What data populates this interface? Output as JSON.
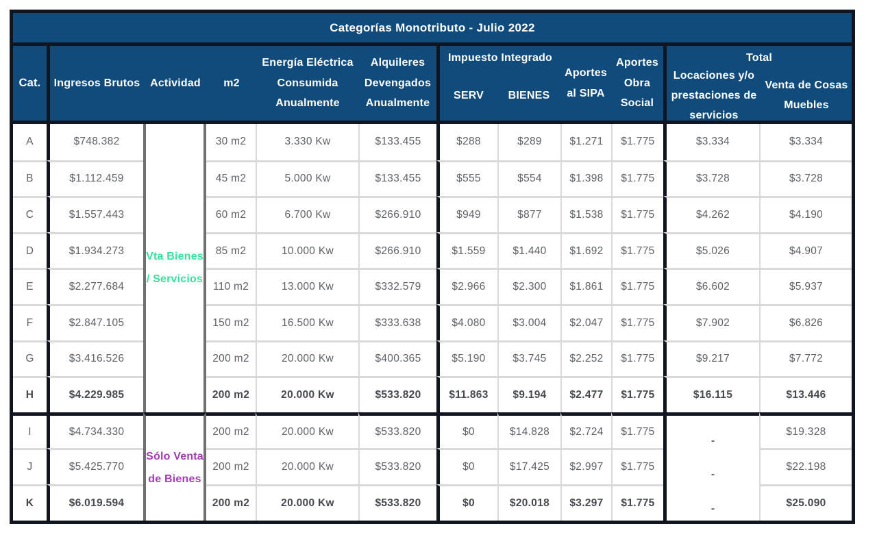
{
  "title": "Categorías Monotributo - Julio 2022",
  "colors": {
    "header_bg": "#114B7C",
    "border_dark": "#111520",
    "grid_light": "#D9D9D9",
    "grid_medium": "#707070",
    "data_text": "#5E6166",
    "accent_green": "#35E29B",
    "accent_purple": "#A43BB5"
  },
  "header": {
    "cat": "Cat.",
    "ingresos_brutos": "Ingresos Brutos",
    "actividad": "Actividad",
    "m2": "m2",
    "energia": "Energía Eléctrica\nConsumida\nAnualmente",
    "alquileres": "Alquileres\nDevengados\nAnualmente",
    "impuesto_integrado": "Impuesto Integrado",
    "serv": "SERV",
    "bienes": "BIENES",
    "aportes_sipa": "Aportes\nal SIPA",
    "aportes_obra_social": "Aportes\nObra\nSocial",
    "total": "Total",
    "locaciones": "Locaciones y/o\nprestaciones de\nservicios",
    "venta_cosas_muebles": "Venta de Cosas\nMuebles"
  },
  "activity_groups": [
    {
      "label": "Vta Bienes\n/ Servicios",
      "color": "#35E29B",
      "rows": "A-H"
    },
    {
      "label": "Sólo Venta\nde Bienes",
      "color": "#A43BB5",
      "rows": "I-K"
    }
  ],
  "chart_data": {
    "type": "table",
    "title": "Categorías Monotributo - Julio 2022",
    "columns": [
      "Cat.",
      "Ingresos Brutos",
      "Actividad",
      "m2",
      "Energía Eléctrica Consumida Anualmente",
      "Alquileres Devengados Anualmente",
      "Impuesto Integrado SERV",
      "Impuesto Integrado BIENES",
      "Aportes al SIPA",
      "Aportes Obra Social",
      "Total Locaciones y/o prestaciones de servicios",
      "Total Venta de Cosas Muebles"
    ],
    "rows": [
      {
        "cat": "A",
        "ingresos": "$748.382",
        "actividad": "Vta Bienes / Servicios",
        "m2": "30 m2",
        "energia": "3.330 Kw",
        "alquileres": "$133.455",
        "serv": "$288",
        "bienes": "$289",
        "sipa": "$1.271",
        "obra": "$1.775",
        "loc": "$3.334",
        "venta": "$3.334",
        "bold": false
      },
      {
        "cat": "B",
        "ingresos": "$1.112.459",
        "actividad": "Vta Bienes / Servicios",
        "m2": "45 m2",
        "energia": "5.000 Kw",
        "alquileres": "$133.455",
        "serv": "$555",
        "bienes": "$554",
        "sipa": "$1.398",
        "obra": "$1.775",
        "loc": "$3.728",
        "venta": "$3.728",
        "bold": false
      },
      {
        "cat": "C",
        "ingresos": "$1.557.443",
        "actividad": "Vta Bienes / Servicios",
        "m2": "60 m2",
        "energia": "6.700 Kw",
        "alquileres": "$266.910",
        "serv": "$949",
        "bienes": "$877",
        "sipa": "$1.538",
        "obra": "$1.775",
        "loc": "$4.262",
        "venta": "$4.190",
        "bold": false
      },
      {
        "cat": "D",
        "ingresos": "$1.934.273",
        "actividad": "Vta Bienes / Servicios",
        "m2": "85 m2",
        "energia": "10.000 Kw",
        "alquileres": "$266.910",
        "serv": "$1.559",
        "bienes": "$1.440",
        "sipa": "$1.692",
        "obra": "$1.775",
        "loc": "$5.026",
        "venta": "$4.907",
        "bold": false
      },
      {
        "cat": "E",
        "ingresos": "$2.277.684",
        "actividad": "Vta Bienes / Servicios",
        "m2": "110 m2",
        "energia": "13.000 Kw",
        "alquileres": "$332.579",
        "serv": "$2.966",
        "bienes": "$2.300",
        "sipa": "$1.861",
        "obra": "$1.775",
        "loc": "$6.602",
        "venta": "$5.937",
        "bold": false
      },
      {
        "cat": "F",
        "ingresos": "$2.847.105",
        "actividad": "Vta Bienes / Servicios",
        "m2": "150 m2",
        "energia": "16.500 Kw",
        "alquileres": "$333.638",
        "serv": "$4.080",
        "bienes": "$3.004",
        "sipa": "$2.047",
        "obra": "$1.775",
        "loc": "$7.902",
        "venta": "$6.826",
        "bold": false
      },
      {
        "cat": "G",
        "ingresos": "$3.416.526",
        "actividad": "Vta Bienes / Servicios",
        "m2": "200 m2",
        "energia": "20.000 Kw",
        "alquileres": "$400.365",
        "serv": "$5.190",
        "bienes": "$3.745",
        "sipa": "$2.252",
        "obra": "$1.775",
        "loc": "$9.217",
        "venta": "$7.772",
        "bold": false
      },
      {
        "cat": "H",
        "ingresos": "$4.229.985",
        "actividad": "Vta Bienes / Servicios",
        "m2": "200 m2",
        "energia": "20.000 Kw",
        "alquileres": "$533.820",
        "serv": "$11.863",
        "bienes": "$9.194",
        "sipa": "$2.477",
        "obra": "$1.775",
        "loc": "$16.115",
        "venta": "$13.446",
        "bold": true
      },
      {
        "cat": "I",
        "ingresos": "$4.734.330",
        "actividad": "Sólo Venta de Bienes",
        "m2": "200 m2",
        "energia": "20.000 Kw",
        "alquileres": "$533.820",
        "serv": "$0",
        "bienes": "$14.828",
        "sipa": "$2.724",
        "obra": "$1.775",
        "loc": "-",
        "venta": "$19.328",
        "bold": false
      },
      {
        "cat": "J",
        "ingresos": "$5.425.770",
        "actividad": "Sólo Venta de Bienes",
        "m2": "200 m2",
        "energia": "20.000 Kw",
        "alquileres": "$533.820",
        "serv": "$0",
        "bienes": "$17.425",
        "sipa": "$2.997",
        "obra": "$1.775",
        "loc": "-",
        "venta": "$22.198",
        "bold": false
      },
      {
        "cat": "K",
        "ingresos": "$6.019.594",
        "actividad": "Sólo Venta de Bienes",
        "m2": "200 m2",
        "energia": "20.000 Kw",
        "alquileres": "$533.820",
        "serv": "$0",
        "bienes": "$20.018",
        "sipa": "$3.297",
        "obra": "$1.775",
        "loc": "-",
        "venta": "$25.090",
        "bold": true
      }
    ]
  }
}
